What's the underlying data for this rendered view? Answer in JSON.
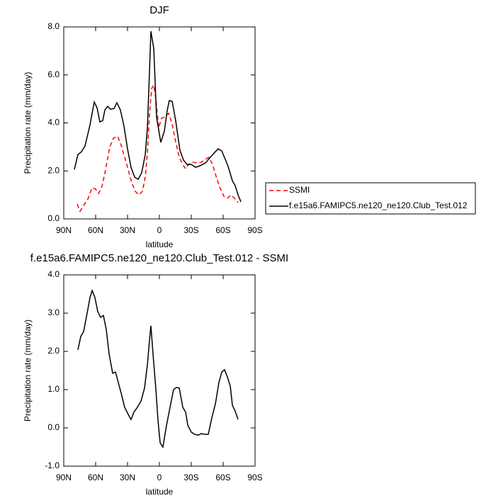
{
  "chart_data": [
    {
      "type": "line",
      "title": "DJF",
      "x_label": "latitude",
      "y_label": "Precipitation rate (mm/day)",
      "xlim": [
        90,
        -90
      ],
      "xticks": [
        {
          "value": 90,
          "label": "90N"
        },
        {
          "value": 60,
          "label": "60N"
        },
        {
          "value": 30,
          "label": "30N"
        },
        0,
        {
          "value": -30,
          "label": "30S"
        },
        {
          "value": -60,
          "label": "60S"
        },
        {
          "value": -90,
          "label": "90S"
        }
      ],
      "ylim": [
        0,
        8
      ],
      "yticks": [
        {
          "value": 0,
          "label": "0.0"
        },
        {
          "value": 2,
          "label": "2.0"
        },
        {
          "value": 4,
          "label": "4.0"
        },
        {
          "value": 6,
          "label": "6.0"
        },
        {
          "value": 8,
          "label": "8.0"
        }
      ],
      "legend": "right",
      "series": [
        {
          "name": "SSMI",
          "color": "#ff0000",
          "linestyle": "dashed",
          "x": [
            77.3,
            74.7,
            71.3,
            67.3,
            63.3,
            60,
            57.3,
            54,
            50.7,
            46.7,
            43.3,
            39.3,
            36,
            32.7,
            29.3,
            26,
            22.7,
            19.3,
            16,
            13.3,
            11.3,
            9.3,
            7.3,
            5.3,
            3.3,
            0.7,
            -2,
            -4.7,
            -8.7,
            -12,
            -15.3,
            -18.7,
            -22,
            -24.7,
            -27.3,
            -31.3,
            -35.3,
            -39.3,
            -43.3,
            -46.7,
            -50,
            -54,
            -57.3,
            -60.7,
            -64,
            -67.3,
            -70.7,
            -74
          ],
          "values": [
            0.62,
            0.32,
            0.56,
            0.83,
            1.3,
            1.24,
            1.06,
            1.36,
            2.04,
            3.0,
            3.36,
            3.45,
            3.07,
            2.57,
            2.04,
            1.5,
            1.15,
            1.0,
            1.15,
            1.74,
            2.77,
            4.4,
            5.43,
            5.58,
            4.99,
            3.8,
            4.19,
            4.25,
            4.4,
            3.95,
            3.22,
            2.57,
            2.27,
            2.09,
            2.27,
            2.36,
            2.33,
            2.36,
            2.48,
            2.57,
            2.27,
            1.68,
            1.27,
            0.94,
            0.86,
            1.0,
            0.86,
            0.68
          ]
        },
        {
          "name": "f.e15a6.FAMIPC5.ne120_ne120.Club_Test.012",
          "color": "#000000",
          "linestyle": "solid",
          "x": [
            80,
            76.7,
            73.3,
            70,
            65.3,
            63.3,
            61.3,
            58.7,
            56,
            53.3,
            51.3,
            48.7,
            46,
            42.7,
            40,
            36.7,
            33.3,
            30,
            26.7,
            23.3,
            20,
            16.7,
            13.3,
            11.3,
            9.3,
            8,
            5.3,
            2.7,
            -1.3,
            -4.7,
            -7.3,
            -9.3,
            -12,
            -15.3,
            -19.3,
            -22.7,
            -26,
            -30,
            -34,
            -38,
            -43.3,
            -48,
            -52,
            -55.3,
            -58.7,
            -62,
            -64.7,
            -68.7,
            -71.3,
            -74,
            -76.7
          ],
          "values": [
            2.06,
            2.68,
            2.8,
            3.04,
            3.92,
            4.4,
            4.87,
            4.63,
            4.04,
            4.1,
            4.54,
            4.69,
            4.57,
            4.6,
            4.84,
            4.54,
            3.86,
            2.92,
            2.15,
            1.74,
            1.65,
            1.92,
            2.68,
            3.8,
            6.17,
            7.82,
            7.1,
            4.25,
            3.19,
            3.66,
            4.51,
            4.93,
            4.9,
            4.1,
            2.86,
            2.45,
            2.27,
            2.27,
            2.15,
            2.21,
            2.33,
            2.57,
            2.77,
            2.92,
            2.83,
            2.48,
            2.18,
            1.59,
            1.39,
            1.0,
            0.71
          ]
        }
      ]
    },
    {
      "type": "line",
      "title": "f.e15a6.FAMIPC5.ne120_ne120.Club_Test.012 - SSMI",
      "x_label": "latitude",
      "y_label": "Precipitation rate (mm/day)",
      "xlim": [
        90,
        -90
      ],
      "xticks": [
        {
          "value": 90,
          "label": "90N"
        },
        {
          "value": 60,
          "label": "60N"
        },
        {
          "value": 30,
          "label": "30N"
        },
        0,
        {
          "value": -30,
          "label": "30S"
        },
        {
          "value": -60,
          "label": "60S"
        },
        {
          "value": -90,
          "label": "90S"
        }
      ],
      "ylim": [
        -1,
        4
      ],
      "yticks": [
        {
          "value": -1,
          "label": "-1.0"
        },
        {
          "value": 0,
          "label": "0.0"
        },
        {
          "value": 1,
          "label": "1.0"
        },
        {
          "value": 2,
          "label": "2.0"
        },
        {
          "value": 3,
          "label": "3.0"
        },
        {
          "value": 4,
          "label": "4.0"
        }
      ],
      "color": "#000000",
      "x": [
        76.7,
        74,
        71.3,
        68,
        65.3,
        63.3,
        60.7,
        58,
        55.3,
        52.7,
        50,
        47.3,
        44,
        41.3,
        38.7,
        36,
        32.7,
        29.3,
        26.7,
        24,
        20.7,
        17.3,
        14,
        11.3,
        9.3,
        8,
        6,
        3.3,
        1.3,
        -0.7,
        -3.3,
        -6.7,
        -10,
        -13.3,
        -16,
        -18.7,
        -22,
        -24.7,
        -26.7,
        -30,
        -33.3,
        -36.7,
        -39.3,
        -42.7,
        -46,
        -49.3,
        -52.7,
        -56,
        -58.7,
        -61.3,
        -64,
        -66.7,
        -68.7,
        -71.3,
        -74
      ],
      "values": [
        2.04,
        2.39,
        2.52,
        3.0,
        3.41,
        3.59,
        3.41,
        3.04,
        2.89,
        2.94,
        2.57,
        1.93,
        1.43,
        1.46,
        1.19,
        0.91,
        0.54,
        0.35,
        0.22,
        0.41,
        0.54,
        0.7,
        1.04,
        1.65,
        2.3,
        2.67,
        1.93,
        1.0,
        0.19,
        -0.39,
        -0.5,
        0.07,
        0.54,
        1.0,
        1.06,
        1.04,
        0.54,
        0.41,
        0.07,
        -0.11,
        -0.17,
        -0.19,
        -0.15,
        -0.17,
        -0.17,
        0.26,
        0.63,
        1.19,
        1.46,
        1.52,
        1.33,
        1.09,
        0.59,
        0.44,
        0.22
      ]
    }
  ]
}
